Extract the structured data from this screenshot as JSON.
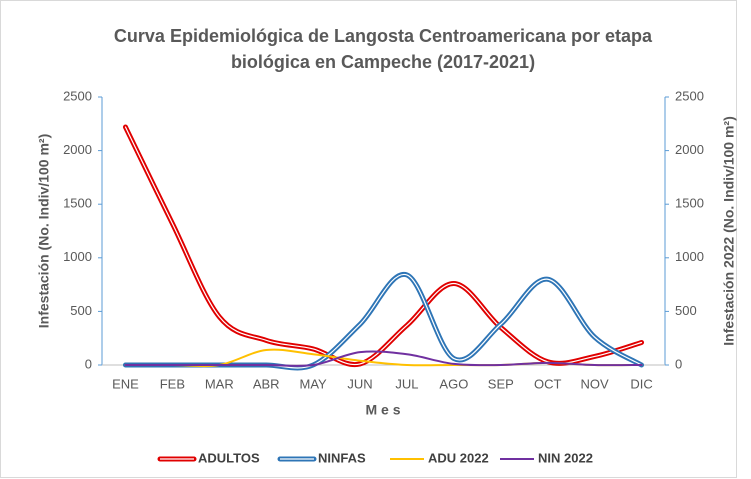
{
  "chart_data": {
    "type": "line",
    "title": [
      "Curva Epidemiológica  de Langosta Centroamericana por etapa",
      "biológica  en Campeche (2017-2021)"
    ],
    "x_label": "M e s",
    "y_label": "Infestación (No. Indiv/100 m²)",
    "y2_label": "Infestación 2022 (No. Indiv/100 m²)",
    "categories": [
      "ENE",
      "FEB",
      "MAR",
      "ABR",
      "MAY",
      "JUN",
      "JUL",
      "AGO",
      "SEP",
      "OCT",
      "NOV",
      "DIC"
    ],
    "series": [
      {
        "name": "ADULTOS",
        "color": "#e00000",
        "style": "double",
        "values": [
          2220,
          1320,
          450,
          230,
          150,
          10,
          370,
          760,
          350,
          30,
          80,
          210
        ]
      },
      {
        "name": "NINFAS",
        "color": "#2e75b6",
        "style": "double",
        "values": [
          0,
          0,
          0,
          0,
          0,
          380,
          840,
          60,
          380,
          800,
          260,
          0
        ]
      },
      {
        "name": "ADU 2022",
        "color": "#ffc000",
        "style": "single",
        "axis": "y2",
        "values": [
          0,
          0,
          0,
          140,
          100,
          40,
          0,
          0,
          0,
          20,
          0,
          0
        ]
      },
      {
        "name": "NIN 2022",
        "color": "#7030a0",
        "style": "single",
        "axis": "y2",
        "values": [
          0,
          0,
          0,
          0,
          0,
          120,
          100,
          10,
          0,
          20,
          0,
          0
        ]
      }
    ],
    "ylim": [
      0,
      2500
    ],
    "yticks": [
      0,
      500,
      1000,
      1500,
      2000,
      2500
    ],
    "y2lim": [
      0,
      2500
    ],
    "y2ticks": [
      0,
      500,
      1000,
      1500,
      2000,
      2500
    ],
    "legend": "bottom",
    "grid": false
  }
}
